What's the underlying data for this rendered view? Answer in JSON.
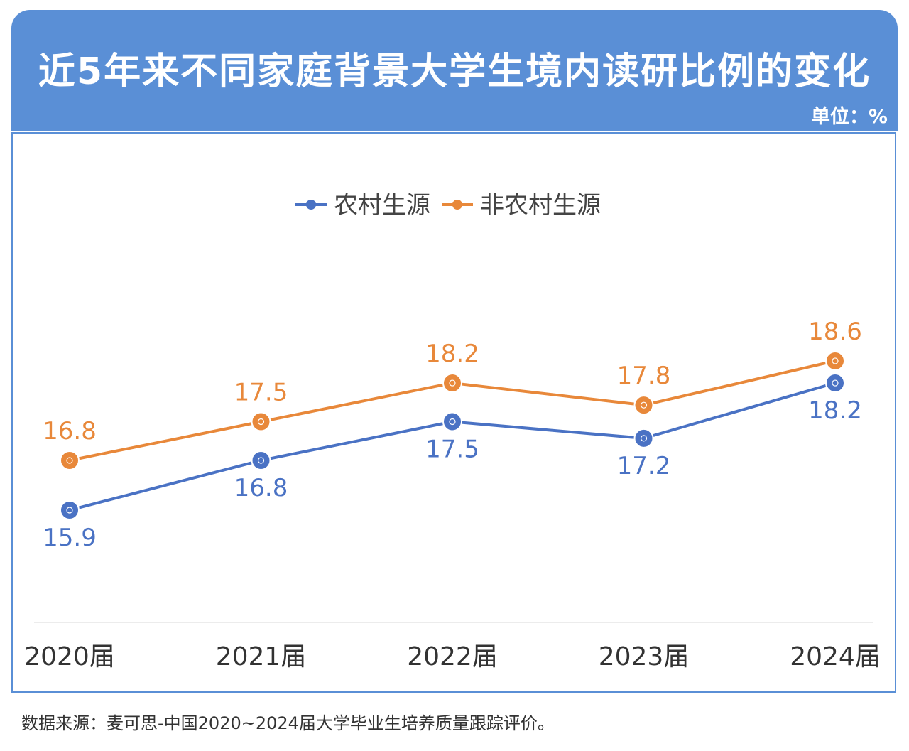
{
  "header": {
    "title": "近5年来不同家庭背景大学生境内读研比例的变化",
    "unit": "单位：%"
  },
  "colors": {
    "header_bg": "#5a8fd6",
    "rural": "#4a72c4",
    "nonrural": "#e8883a"
  },
  "chart_data": {
    "type": "line",
    "title": "近5年来不同家庭背景大学生境内读研比例的变化",
    "unit": "单位：%",
    "categories": [
      "2020届",
      "2021届",
      "2022届",
      "2023届",
      "2024届"
    ],
    "series": [
      {
        "name": "农村生源",
        "color": "#4a72c4",
        "values": [
          15.9,
          16.8,
          17.5,
          17.2,
          18.2
        ]
      },
      {
        "name": "非农村生源",
        "color": "#e8883a",
        "values": [
          16.8,
          17.5,
          18.2,
          17.8,
          18.6
        ]
      }
    ],
    "ylim": [
      14.5,
      19.5
    ],
    "grid": false,
    "legend": "top-center",
    "data_labels": true
  },
  "footer": {
    "source": "数据来源：麦可思-中国2020~2024届大学毕业生培养质量跟踪评价。"
  }
}
